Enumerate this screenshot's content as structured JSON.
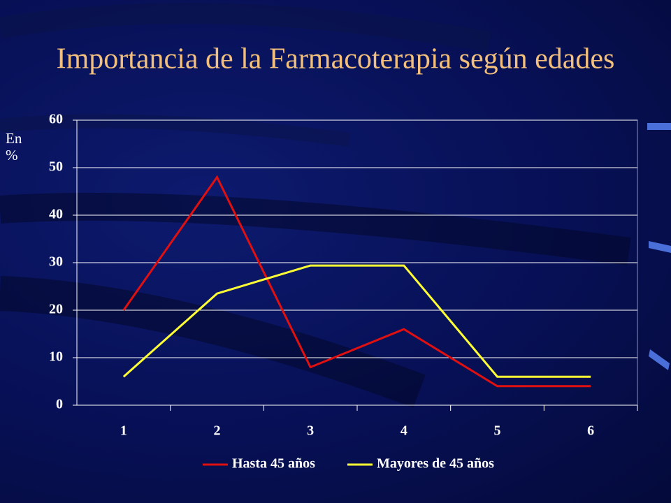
{
  "chart_data": {
    "type": "line",
    "title": "Importancia de la Farmacoterapia según edades",
    "y_label": "En %",
    "categories": [
      "1",
      "2",
      "3",
      "4",
      "5",
      "6"
    ],
    "series": [
      {
        "name": "Hasta 45 años",
        "color": "#e01010",
        "values": [
          20,
          48,
          8,
          16,
          4,
          4
        ]
      },
      {
        "name": "Mayores de 45 años",
        "color": "#ffff33",
        "values": [
          6,
          23.5,
          29.4,
          29.4,
          6,
          6
        ]
      }
    ],
    "ylim": [
      0,
      60
    ],
    "yticks": [
      0,
      10,
      20,
      30,
      40,
      50,
      60
    ],
    "grid": true,
    "legend": "bottom"
  }
}
